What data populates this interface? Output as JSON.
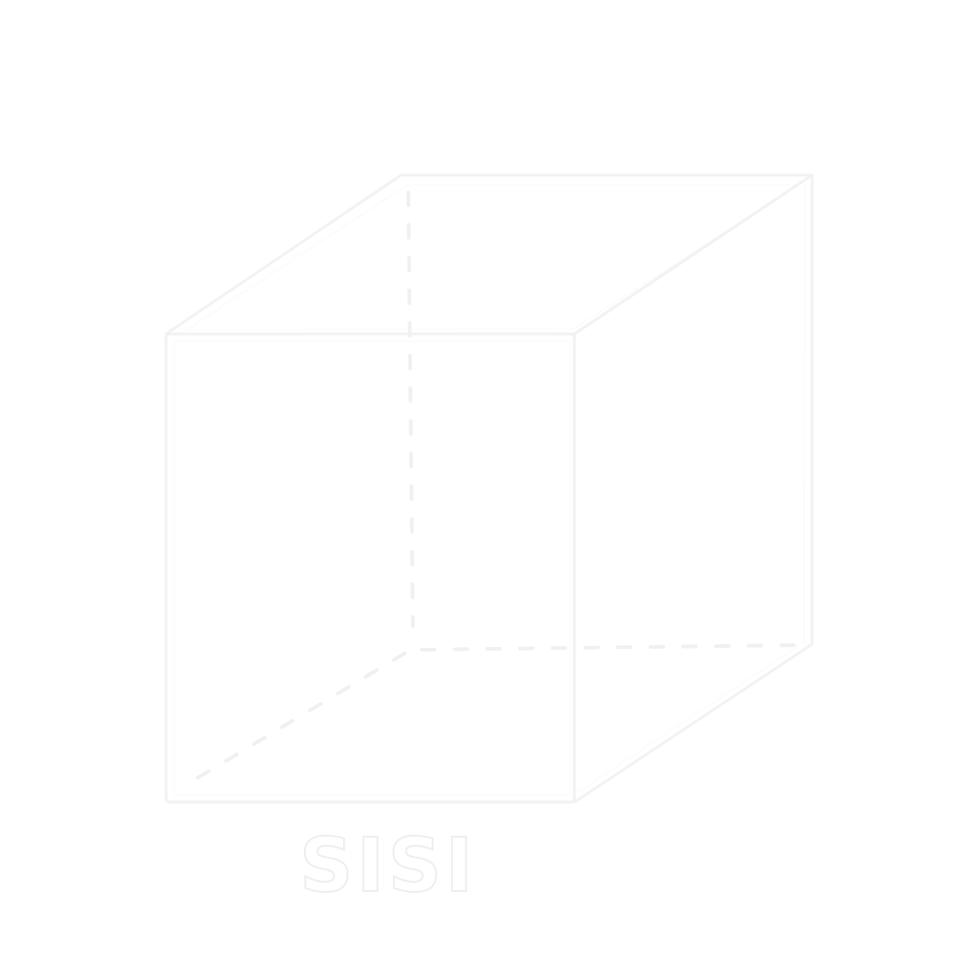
{
  "logo": {
    "text": "SISI"
  },
  "colors": {
    "background": "#ffffff",
    "stroke": "#f2f2f2"
  }
}
